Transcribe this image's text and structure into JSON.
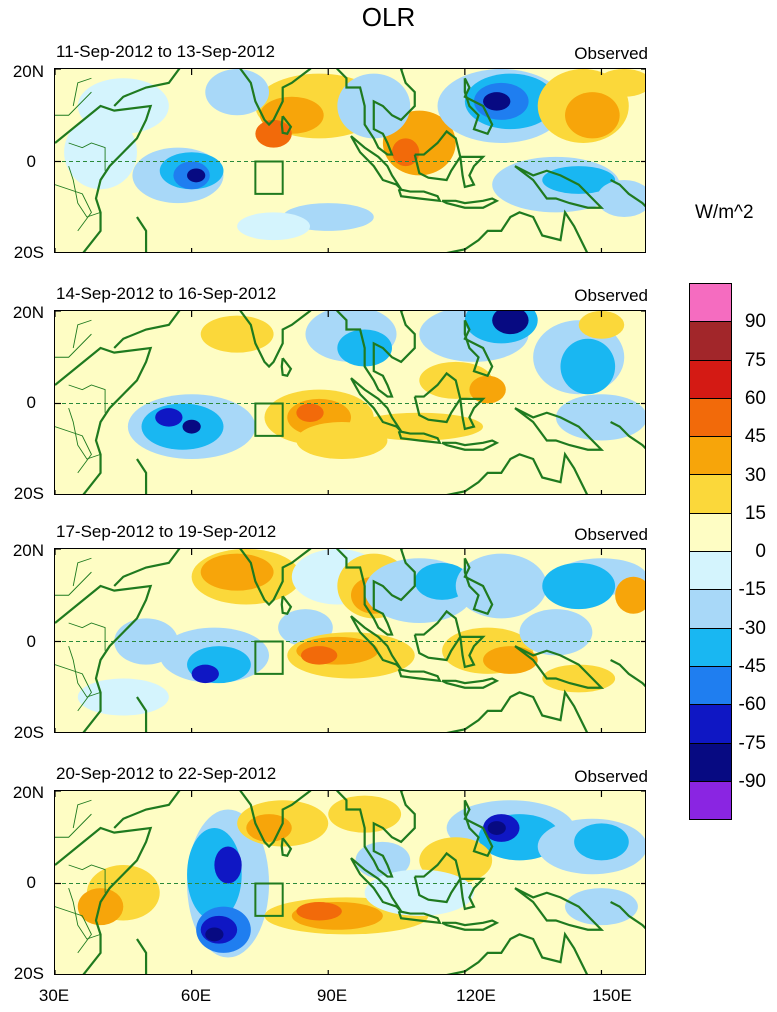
{
  "title": "OLR",
  "unit_label": "W/m^2",
  "panels": [
    {
      "date_range": "11-Sep-2012 to 13-Sep-2012",
      "label": "Observed"
    },
    {
      "date_range": "14-Sep-2012 to 16-Sep-2012",
      "label": "Observed"
    },
    {
      "date_range": "17-Sep-2012 to 19-Sep-2012",
      "label": "Observed"
    },
    {
      "date_range": "20-Sep-2012 to 22-Sep-2012",
      "label": "Observed"
    }
  ],
  "lat_labels": [
    "20N",
    "0",
    "20S"
  ],
  "lon_labels": [
    "30E",
    "60E",
    "90E",
    "120E",
    "150E"
  ],
  "colorbar": {
    "labels": [
      "90",
      "75",
      "60",
      "45",
      "30",
      "15",
      "0",
      "-15",
      "-30",
      "-45",
      "-60",
      "-75",
      "-90"
    ],
    "colors": [
      "#f56cc0",
      "#a2262a",
      "#d41a14",
      "#f26a0a",
      "#f7a50a",
      "#fbd83a",
      "#fefdc4",
      "#d4f4fd",
      "#a8d8f8",
      "#19b7f2",
      "#1f7ef0",
      "#0f17c4",
      "#070a82",
      "#8a25e2"
    ]
  },
  "box_region": {
    "lon": [
      74,
      80
    ],
    "lat": [
      -7,
      0
    ]
  },
  "map_extent": {
    "lon": [
      30,
      160
    ],
    "lat": [
      -20,
      20
    ]
  }
}
